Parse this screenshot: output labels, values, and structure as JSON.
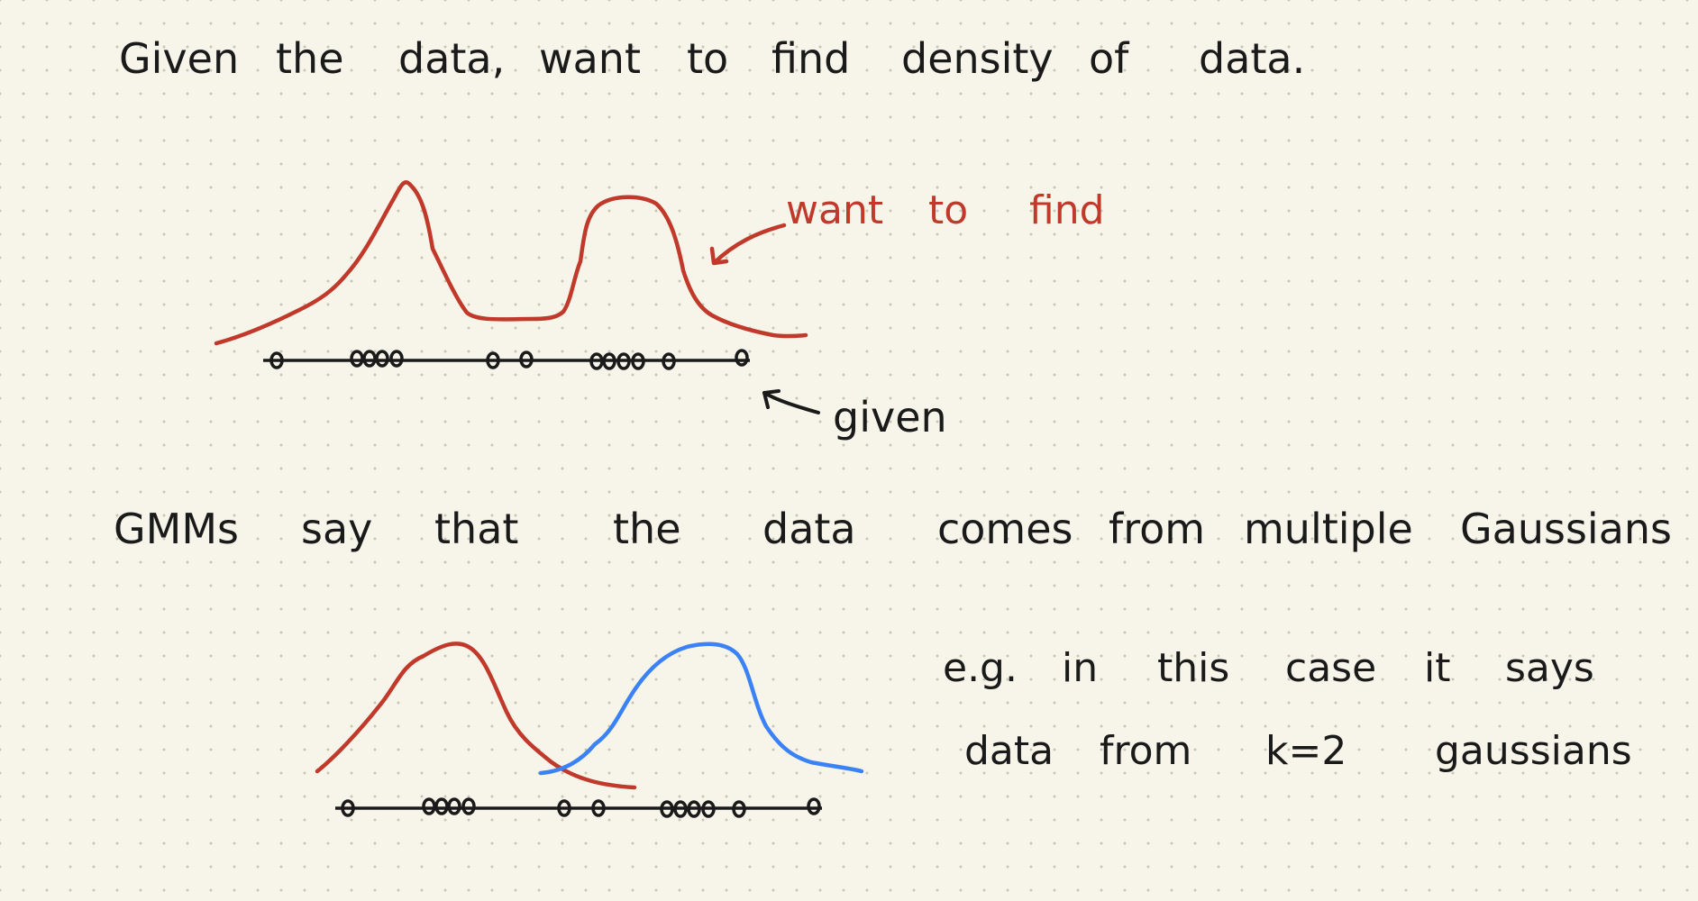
{
  "colors": {
    "paper": "#f7f5e9",
    "ink": "#1a1a1a",
    "red": "#c0392b",
    "blue": "#3b82f6"
  },
  "line1": [
    "Given",
    "the",
    "data,",
    "want",
    "to",
    "find",
    "density",
    "of",
    "data."
  ],
  "annotation_red": [
    "want",
    "to",
    "find"
  ],
  "annotation_given": "given",
  "line2": [
    "GMMs",
    "say",
    "that",
    "the",
    "data",
    "comes",
    "from",
    "multiple",
    "Gaussians"
  ],
  "example_line1": [
    "e.g.",
    "in",
    "this",
    "case",
    "it",
    "says"
  ],
  "example_line2": [
    "data",
    "from",
    "k=2",
    "gaussians"
  ]
}
